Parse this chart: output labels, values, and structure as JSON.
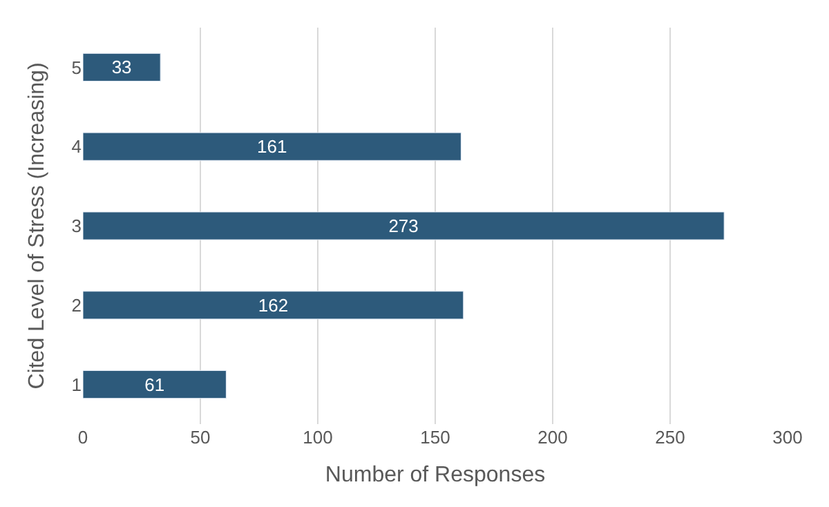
{
  "chart_data": {
    "type": "bar",
    "orientation": "horizontal",
    "xlabel": "Number of Responses",
    "ylabel": "Cited Level of Stress (Increasing)",
    "categories": [
      "5",
      "4",
      "3",
      "2",
      "1"
    ],
    "values": [
      33,
      161,
      273,
      162,
      61
    ],
    "color": "#2d5a7b",
    "xlim": [
      0,
      300
    ],
    "xticks": [
      0,
      50,
      100,
      150,
      200,
      250,
      300
    ],
    "grid": "x",
    "data_labels": true
  }
}
